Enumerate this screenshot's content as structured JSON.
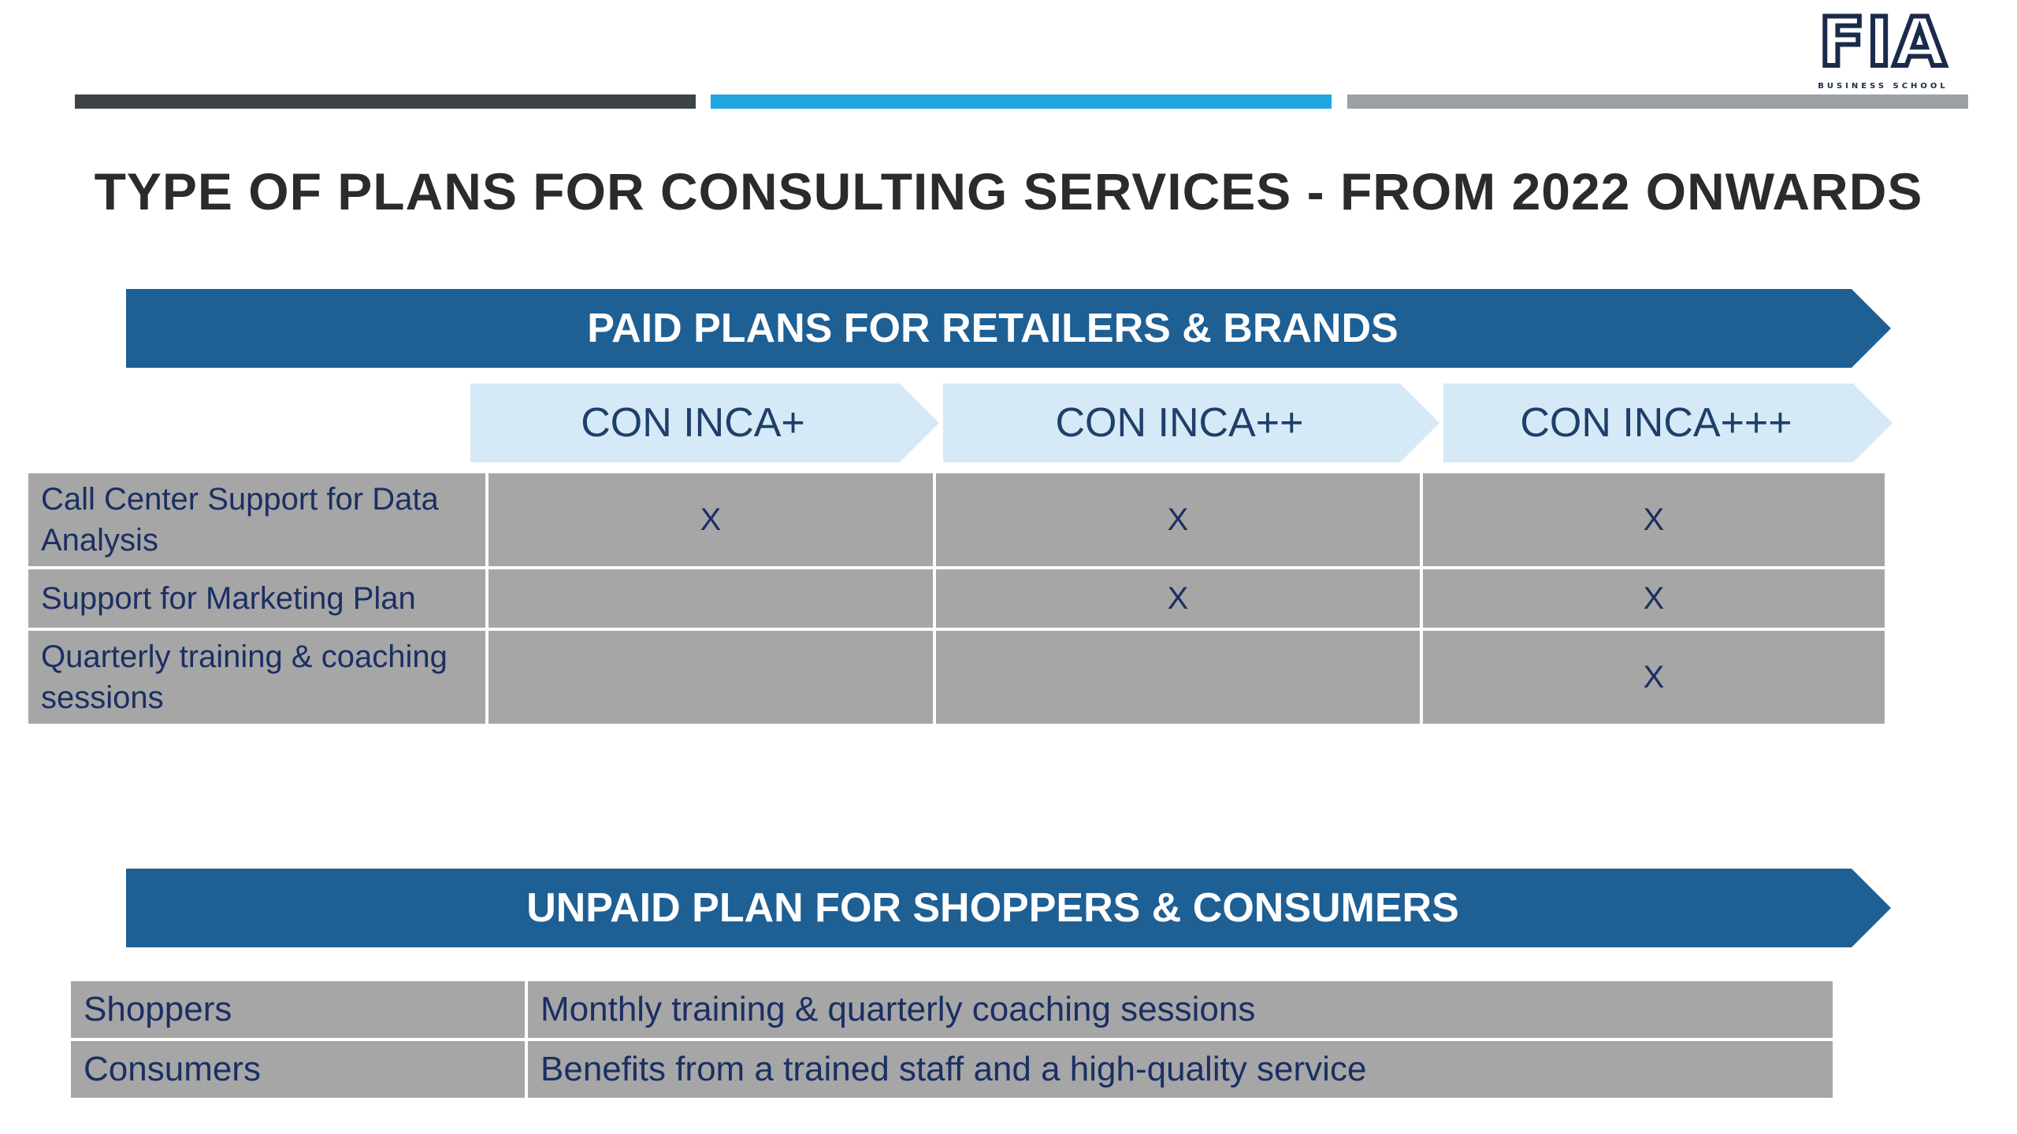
{
  "logo": {
    "mark": "FIA",
    "subtitle": "BUSINESS SCHOOL"
  },
  "title": "TYPE OF PLANS FOR CONSULTING SERVICES - FROM 2022 ONWARDS",
  "paid": {
    "banner": "PAID PLANS FOR RETAILERS & BRANDS",
    "plans": [
      "CON INCA+",
      "CON INCA++",
      "CON INCA+++"
    ],
    "rows": [
      {
        "feature": "Call Center Support for Data Analysis",
        "marks": [
          "X",
          "X",
          "X"
        ]
      },
      {
        "feature": "Support for Marketing Plan",
        "marks": [
          "",
          "X",
          "X"
        ]
      },
      {
        "feature": "Quarterly training & coaching sessions",
        "marks": [
          "",
          "",
          "X"
        ]
      }
    ]
  },
  "unpaid": {
    "banner": "UNPAID PLAN FOR SHOPPERS & CONSUMERS",
    "rows": [
      {
        "audience": "Shoppers",
        "benefit": "Monthly training & quarterly coaching sessions"
      },
      {
        "audience": "Consumers",
        "benefit": "Benefits from a trained staff and a high-quality service"
      }
    ]
  },
  "colors": {
    "banner": "#1e5f94",
    "chevron": "#d5e9f7",
    "cell": "#a6a6a6",
    "text_dark_blue": "#1a2f63",
    "accent_bar": "#1fa6df"
  }
}
